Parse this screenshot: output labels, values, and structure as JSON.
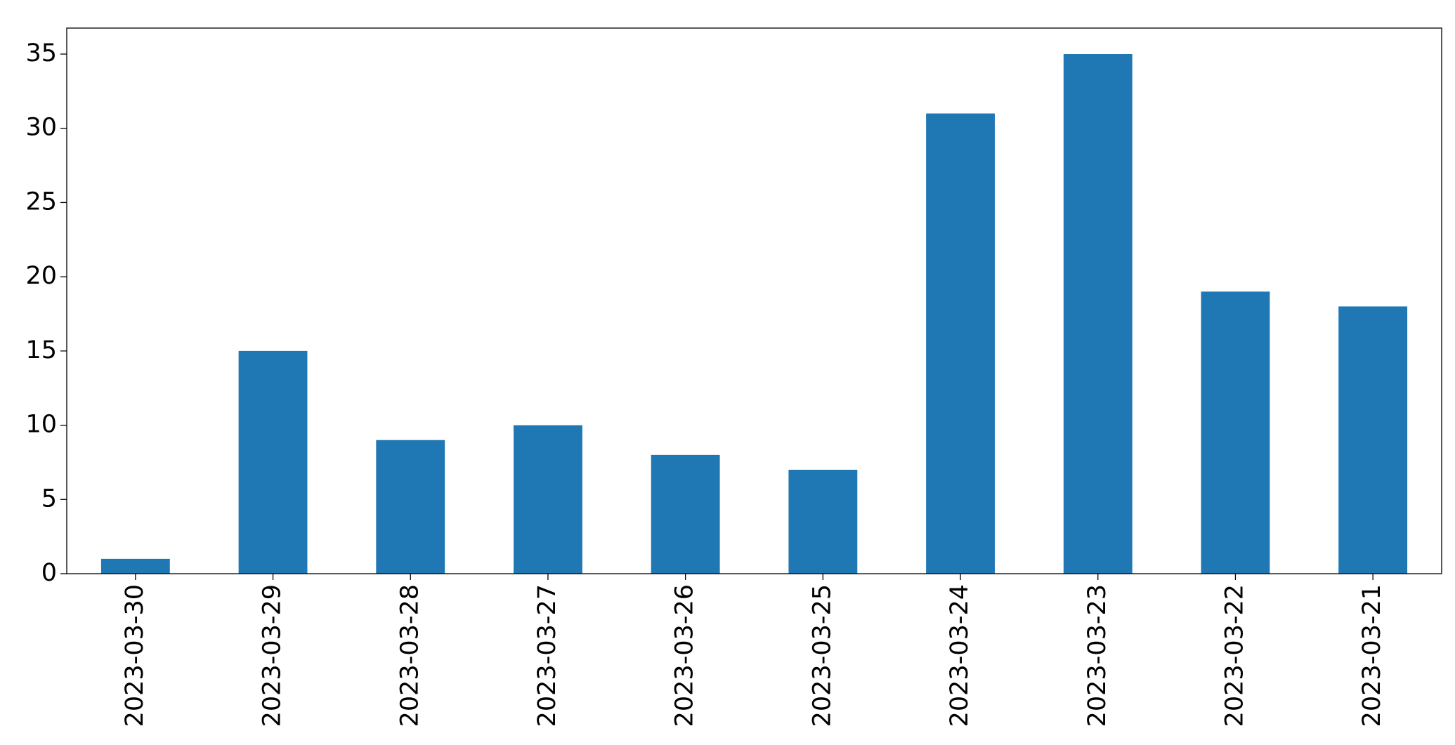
{
  "chart_data": {
    "type": "bar",
    "categories": [
      "2023-03-30",
      "2023-03-29",
      "2023-03-28",
      "2023-03-27",
      "2023-03-26",
      "2023-03-25",
      "2023-03-24",
      "2023-03-23",
      "2023-03-22",
      "2023-03-21"
    ],
    "values": [
      1,
      15,
      9,
      10,
      8,
      7,
      31,
      35,
      19,
      18
    ],
    "color": "#1f77b4",
    "ylim": [
      0,
      36.75
    ],
    "yticks": [
      0,
      5,
      10,
      15,
      20,
      25,
      30,
      35
    ],
    "grid": false
  }
}
